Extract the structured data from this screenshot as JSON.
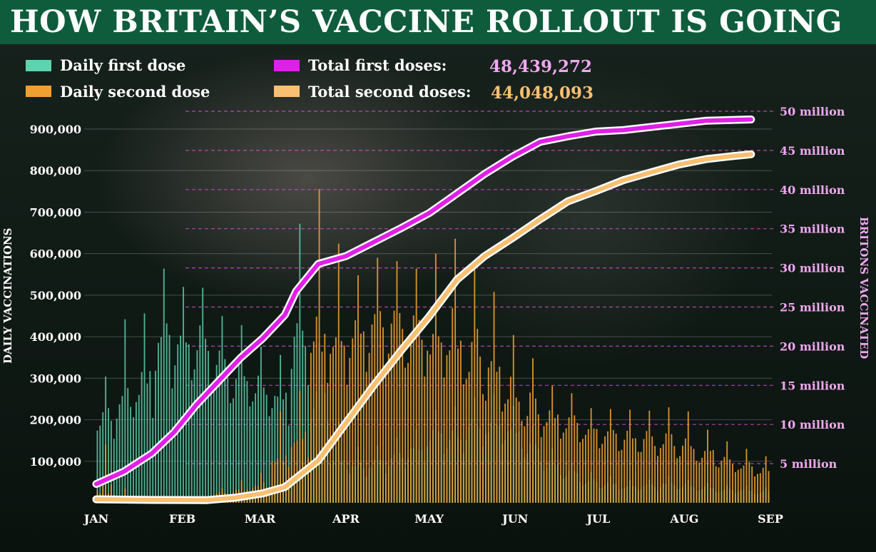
{
  "title": "HOW BRITAIN’S VACCINE ROLLOUT IS GOING",
  "legend": {
    "daily_first": "Daily first dose",
    "daily_second": "Daily second dose",
    "total_first": "Total first doses:",
    "total_second": "Total second doses:"
  },
  "totals": {
    "first": "48,439,272",
    "second": "44,048,093"
  },
  "colors": {
    "title_bg": "#0f5c3c",
    "daily_first": "#5ed3b0",
    "daily_second": "#f0a030",
    "total_first": "#e020e8",
    "total_second": "#f8c070",
    "right_axis": "#f0a8f0"
  },
  "chart_data": {
    "type": "bar",
    "title": "HOW BRITAIN’S VACCINE ROLLOUT IS GOING",
    "ylabel": "DAILY VACCINATIONS",
    "y2label": "BRITONS VACCINATED",
    "ylim": [
      0,
      950000
    ],
    "y2lim": [
      0,
      50000000
    ],
    "left_ticks": [
      100000,
      200000,
      300000,
      400000,
      500000,
      600000,
      700000,
      800000,
      900000
    ],
    "left_tick_labels": [
      "100,000",
      "200,000",
      "300,000",
      "400,000",
      "500,000",
      "600,000",
      "700,000",
      "800,000",
      "900,000"
    ],
    "right_ticks": [
      5000000,
      10000000,
      15000000,
      20000000,
      25000000,
      30000000,
      35000000,
      40000000,
      45000000,
      50000000
    ],
    "right_tick_labels": [
      "5 million",
      "10 million",
      "15 million",
      "20 million",
      "25 million",
      "30 million",
      "35 million",
      "40 million",
      "45 million",
      "50 million"
    ],
    "x_tick_labels": [
      "JAN",
      "FEB",
      "MAR",
      "APR",
      "MAY",
      "JUN",
      "JUL",
      "AUG",
      "SEP"
    ],
    "x_tick_days": [
      0,
      31,
      59,
      90,
      120,
      151,
      181,
      212,
      243
    ],
    "days_total": 243,
    "legend_position": "top",
    "daily_first_weekly": [
      {
        "week": 1,
        "avg": 200000,
        "peak": 330000
      },
      {
        "week": 2,
        "avg": 250000,
        "peak": 490000
      },
      {
        "week": 3,
        "avg": 280000,
        "peak": 500000
      },
      {
        "week": 4,
        "avg": 380000,
        "peak": 610000
      },
      {
        "week": 5,
        "avg": 400000,
        "peak": 550000
      },
      {
        "week": 6,
        "avg": 390000,
        "peak": 550000
      },
      {
        "week": 7,
        "avg": 330000,
        "peak": 480000
      },
      {
        "week": 8,
        "avg": 300000,
        "peak": 460000
      },
      {
        "week": 9,
        "avg": 280000,
        "peak": 400000
      },
      {
        "week": 10,
        "avg": 260000,
        "peak": 380000
      },
      {
        "week": 11,
        "avg": 400000,
        "peak": 740000
      },
      {
        "week": 12,
        "avg": 250000,
        "peak": 420000
      },
      {
        "week": 13,
        "avg": 100000,
        "peak": 220000
      },
      {
        "week": 14,
        "avg": 80000,
        "peak": 150000
      },
      {
        "week": 15,
        "avg": 90000,
        "peak": 150000
      },
      {
        "week": 16,
        "avg": 110000,
        "peak": 170000
      },
      {
        "week": 17,
        "avg": 130000,
        "peak": 190000
      },
      {
        "week": 18,
        "avg": 160000,
        "peak": 240000
      },
      {
        "week": 19,
        "avg": 160000,
        "peak": 250000
      },
      {
        "week": 20,
        "avg": 190000,
        "peak": 270000
      },
      {
        "week": 21,
        "avg": 190000,
        "peak": 280000
      },
      {
        "week": 22,
        "avg": 170000,
        "peak": 250000
      },
      {
        "week": 23,
        "avg": 130000,
        "peak": 200000
      },
      {
        "week": 24,
        "avg": 90000,
        "peak": 140000
      },
      {
        "week": 25,
        "avg": 70000,
        "peak": 100000
      },
      {
        "week": 26,
        "avg": 50000,
        "peak": 80000
      },
      {
        "week": 27,
        "avg": 45000,
        "peak": 70000
      },
      {
        "week": 28,
        "avg": 40000,
        "peak": 60000
      },
      {
        "week": 29,
        "avg": 40000,
        "peak": 60000
      },
      {
        "week": 30,
        "avg": 45000,
        "peak": 70000
      },
      {
        "week": 31,
        "avg": 40000,
        "peak": 60000
      },
      {
        "week": 32,
        "avg": 35000,
        "peak": 50000
      },
      {
        "week": 33,
        "avg": 30000,
        "peak": 45000
      },
      {
        "week": 34,
        "avg": 30000,
        "peak": 45000
      },
      {
        "week": 35,
        "avg": 25000,
        "peak": 40000
      }
    ],
    "daily_second_weekly": [
      {
        "week": 1,
        "avg": 20000,
        "peak": 170000
      },
      {
        "week": 2,
        "avg": 10000,
        "peak": 40000
      },
      {
        "week": 3,
        "avg": 10000,
        "peak": 20000
      },
      {
        "week": 4,
        "avg": 10000,
        "peak": 20000
      },
      {
        "week": 5,
        "avg": 10000,
        "peak": 20000
      },
      {
        "week": 6,
        "avg": 10000,
        "peak": 20000
      },
      {
        "week": 7,
        "avg": 20000,
        "peak": 40000
      },
      {
        "week": 8,
        "avg": 30000,
        "peak": 60000
      },
      {
        "week": 9,
        "avg": 40000,
        "peak": 80000
      },
      {
        "week": 10,
        "avg": 100000,
        "peak": 250000
      },
      {
        "week": 11,
        "avg": 150000,
        "peak": 300000
      },
      {
        "week": 12,
        "avg": 380000,
        "peak": 850000
      },
      {
        "week": 13,
        "avg": 400000,
        "peak": 680000
      },
      {
        "week": 14,
        "avg": 420000,
        "peak": 580000
      },
      {
        "week": 15,
        "avg": 430000,
        "peak": 630000
      },
      {
        "week": 16,
        "avg": 430000,
        "peak": 620000
      },
      {
        "week": 17,
        "avg": 420000,
        "peak": 600000
      },
      {
        "week": 18,
        "avg": 400000,
        "peak": 650000
      },
      {
        "week": 19,
        "avg": 380000,
        "peak": 700000
      },
      {
        "week": 20,
        "avg": 350000,
        "peak": 640000
      },
      {
        "week": 21,
        "avg": 300000,
        "peak": 560000
      },
      {
        "week": 22,
        "avg": 260000,
        "peak": 440000
      },
      {
        "week": 23,
        "avg": 220000,
        "peak": 380000
      },
      {
        "week": 24,
        "avg": 210000,
        "peak": 300000
      },
      {
        "week": 25,
        "avg": 200000,
        "peak": 280000
      },
      {
        "week": 26,
        "avg": 180000,
        "peak": 240000
      },
      {
        "week": 27,
        "avg": 170000,
        "peak": 240000
      },
      {
        "week": 28,
        "avg": 160000,
        "peak": 240000
      },
      {
        "week": 29,
        "avg": 150000,
        "peak": 240000
      },
      {
        "week": 30,
        "avg": 150000,
        "peak": 250000
      },
      {
        "week": 31,
        "avg": 140000,
        "peak": 240000
      },
      {
        "week": 32,
        "avg": 120000,
        "peak": 190000
      },
      {
        "week": 33,
        "avg": 100000,
        "peak": 160000
      },
      {
        "week": 34,
        "avg": 90000,
        "peak": 140000
      },
      {
        "week": 35,
        "avg": 80000,
        "peak": 120000
      }
    ],
    "total_first_series": {
      "name": "Total first doses",
      "x": [
        0,
        10,
        20,
        28,
        36,
        44,
        52,
        60,
        68,
        72,
        80,
        90,
        100,
        110,
        120,
        130,
        140,
        150,
        160,
        170,
        180,
        190,
        200,
        210,
        220,
        230,
        236
      ],
      "y": [
        2400000,
        4000000,
        6300000,
        9000000,
        12500000,
        15500000,
        18500000,
        21000000,
        24000000,
        27000000,
        30500000,
        31500000,
        33300000,
        35100000,
        37000000,
        39500000,
        42000000,
        44200000,
        46100000,
        46800000,
        47400000,
        47600000,
        48000000,
        48400000,
        48800000,
        48900000,
        48950000
      ]
    },
    "total_second_series": {
      "name": "Total second doses",
      "x": [
        0,
        20,
        40,
        50,
        60,
        68,
        80,
        90,
        100,
        110,
        120,
        130,
        140,
        150,
        160,
        170,
        180,
        190,
        200,
        210,
        220,
        230,
        236
      ],
      "y": [
        450000,
        360000,
        350000,
        650000,
        1200000,
        2000000,
        5400000,
        10200000,
        15000000,
        19500000,
        23800000,
        28500000,
        31500000,
        33800000,
        36200000,
        38500000,
        39800000,
        41200000,
        42200000,
        43200000,
        43900000,
        44300000,
        44500000
      ]
    }
  }
}
